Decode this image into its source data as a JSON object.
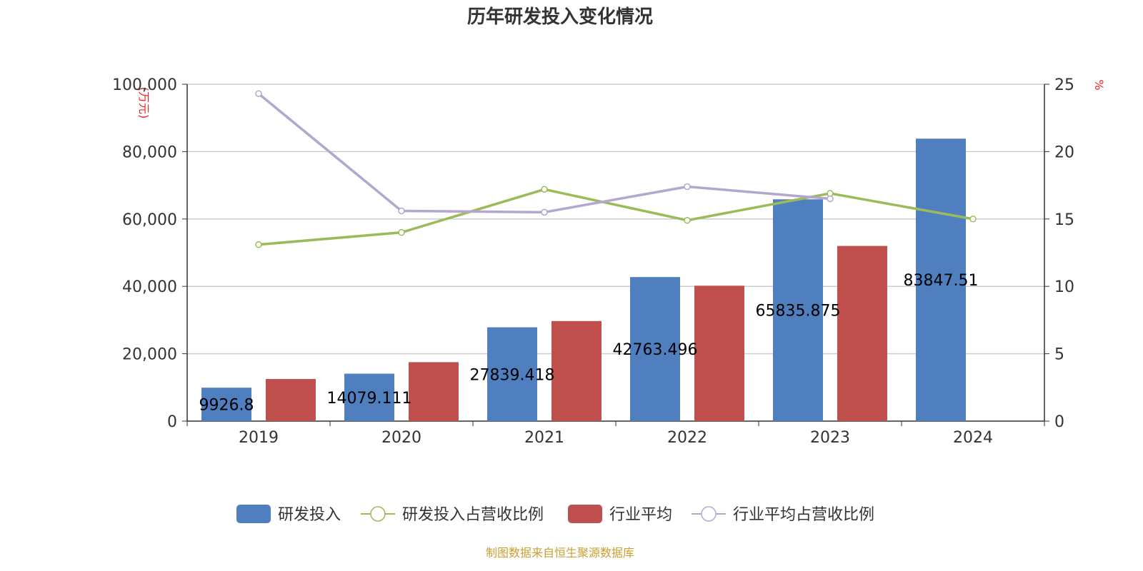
{
  "chart_data": {
    "type": "bar",
    "title": "历年研发投入变化情况",
    "categories": [
      "2019",
      "2020",
      "2021",
      "2022",
      "2023",
      "2024"
    ],
    "y_left": {
      "unit": "(万元)",
      "ylim": [
        0,
        100000
      ],
      "ticks": [
        "0",
        "20,000",
        "40,000",
        "60,000",
        "80,000",
        "100,000"
      ]
    },
    "y_right": {
      "unit": "%",
      "ylim": [
        0,
        25
      ],
      "ticks": [
        "0",
        "5",
        "10",
        "15",
        "20",
        "25"
      ]
    },
    "grid": true,
    "legend_position": "bottom",
    "series": [
      {
        "name": "研发投入",
        "kind": "bar",
        "axis": "left",
        "color": "#4f7fbf",
        "values": [
          9926.8,
          14079.111,
          27839.418,
          42763.496,
          65835.875,
          83847.51
        ],
        "labels": [
          "9926.8",
          "14079.111",
          "27839.418",
          "42763.496",
          "65835.875",
          "83847.51"
        ]
      },
      {
        "name": "研发投入占营收比例",
        "kind": "line",
        "axis": "right",
        "color": "#9bbb59",
        "values": [
          13.1,
          14.0,
          17.2,
          14.9,
          16.9,
          15.0
        ]
      },
      {
        "name": "行业平均",
        "kind": "bar",
        "axis": "left",
        "color": "#c0504d",
        "values": [
          12500,
          17500,
          29700,
          40200,
          52000,
          null
        ]
      },
      {
        "name": "行业平均占营收比例",
        "kind": "line",
        "axis": "right",
        "color": "#b3a6cf",
        "values": [
          24.3,
          15.6,
          15.5,
          17.4,
          16.5,
          null
        ]
      }
    ]
  },
  "footer": {
    "source": "制图数据来自恒生聚源数据库"
  }
}
